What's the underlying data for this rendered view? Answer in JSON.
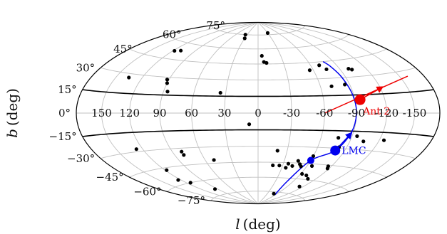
{
  "chart_data": {
    "type": "scatter",
    "projection": "aitoff-hammer-galactic",
    "title": "",
    "xlabel": {
      "symbol": "l",
      "unit": "(deg)"
    },
    "ylabel": {
      "symbol": "b",
      "unit": "(deg)"
    },
    "x_ticks": [
      150,
      120,
      90,
      60,
      30,
      0,
      -30,
      -60,
      -90,
      -120,
      -150
    ],
    "x_tick_labels": [
      "150",
      "120",
      "90",
      "60",
      "30",
      "0",
      "-30",
      "-60",
      "-90",
      "-120",
      "-150"
    ],
    "y_ticks": [
      75,
      60,
      45,
      30,
      15,
      0,
      -15,
      -30,
      -45,
      -60,
      -75
    ],
    "y_tick_labels": [
      "75°",
      "60°",
      "45°",
      "30°",
      "15°",
      "0°",
      "−15°",
      "−30°",
      "−45°",
      "−60°",
      "−75°"
    ],
    "grid": true,
    "disk_band_b": [
      15,
      -15
    ],
    "series": [
      {
        "role": "satellites",
        "color": "#000000",
        "points": [
          [
            35,
            75
          ],
          [
            30,
            71
          ],
          [
            -30,
            77
          ],
          [
            118,
            52
          ],
          [
            110,
            53
          ],
          [
            -5,
            53
          ],
          [
            -70,
            42
          ],
          [
            -75,
            38
          ],
          [
            -100,
            37
          ],
          [
            -103,
            36
          ],
          [
            135,
            27
          ],
          [
            92,
            28
          ],
          [
            90,
            25
          ],
          [
            86,
            18
          ],
          [
            35,
            18
          ],
          [
            -10,
            46
          ],
          [
            -7,
            47
          ],
          [
            -56,
            38
          ],
          [
            -85,
            24
          ],
          [
            -71,
            23
          ],
          [
            8,
            -10
          ],
          [
            -77,
            -21
          ],
          [
            -82,
            -29
          ],
          [
            -95,
            -19
          ],
          [
            -104,
            -23
          ],
          [
            -125,
            -21
          ],
          [
            127,
            -28
          ],
          [
            118,
            -47
          ],
          [
            80,
            -33
          ],
          [
            80,
            -36
          ],
          [
            50,
            -42
          ],
          [
            124,
            -56
          ],
          [
            114,
            -60
          ],
          [
            95,
            -69
          ],
          [
            -20,
            -34
          ],
          [
            -18,
            -48
          ],
          [
            -26,
            -48
          ],
          [
            -36,
            -46
          ],
          [
            -42,
            -48
          ],
          [
            -46,
            -43
          ],
          [
            -50,
            -46
          ],
          [
            -53,
            -48
          ],
          [
            -60,
            -38
          ],
          [
            -66,
            -47
          ],
          [
            -62,
            -55
          ],
          [
            -70,
            -56
          ],
          [
            -86,
            -46
          ],
          [
            -88,
            -48
          ],
          [
            -78,
            -59
          ],
          [
            -83,
            -67
          ],
          [
            -50,
            -77
          ],
          [
            -35,
            -50
          ]
        ]
      },
      {
        "role": "Ant 2",
        "name": "Ant 2",
        "color": "#ee0000",
        "point": [
          -95,
          11
        ],
        "orbit": [
          [
            -60,
            0
          ],
          [
            -160,
            26
          ]
        ],
        "velocity_arrow": [
          [
            -95,
            11
          ],
          [
            -122,
            20
          ]
        ]
      },
      {
        "role": "LMC",
        "name": "LMC",
        "color": "#0000ee",
        "point": [
          -80,
          -32
        ],
        "secondary_point": [
          -60,
          -42
        ],
        "orbit": [
          [
            -58,
            -78
          ],
          [
            -50,
            -63
          ],
          [
            -60,
            -42
          ],
          [
            -80,
            -32
          ],
          [
            -88,
            -16
          ],
          [
            -90,
            0
          ],
          [
            -89,
            15
          ],
          [
            -86,
            30
          ],
          [
            -82,
            40
          ],
          [
            -78,
            45
          ]
        ],
        "velocity_arrow": [
          [
            -80,
            -32
          ],
          [
            -88,
            -17
          ]
        ]
      }
    ]
  }
}
